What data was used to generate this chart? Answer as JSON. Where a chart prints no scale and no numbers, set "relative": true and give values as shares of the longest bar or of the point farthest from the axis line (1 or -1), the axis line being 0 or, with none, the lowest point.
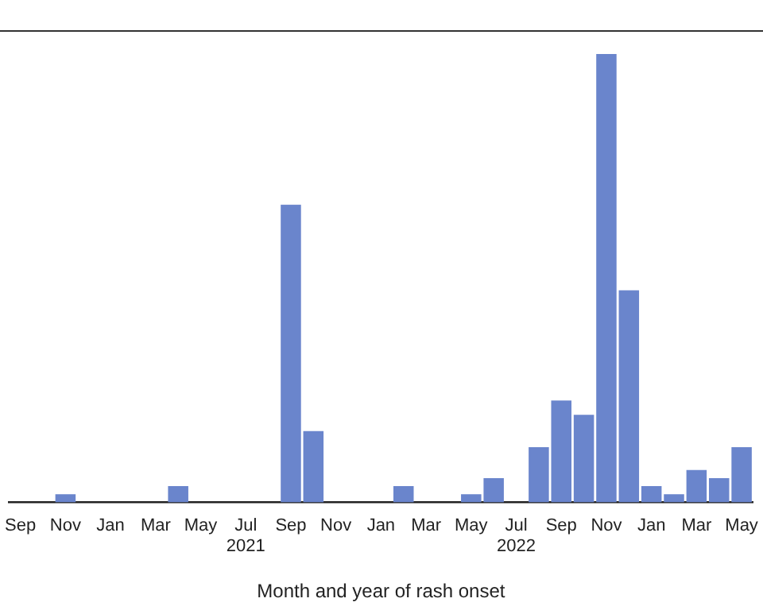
{
  "chart_data": {
    "type": "bar",
    "relative": true,
    "xlabel": "Month and year of rash onset",
    "categories": [
      "Sep",
      null,
      "Nov",
      null,
      "Jan",
      null,
      "Mar",
      null,
      "May",
      null,
      "Jul\n2021",
      null,
      "Sep",
      null,
      "Nov",
      null,
      "Jan",
      null,
      "Mar",
      null,
      "May",
      null,
      "Jul\n2022",
      null,
      "Sep",
      null,
      "Nov",
      null,
      "Jan",
      null,
      "Mar",
      null,
      "May"
    ],
    "values": [
      0,
      0,
      0.018,
      0,
      0,
      0,
      0,
      0.036,
      0,
      0,
      0,
      0,
      0.664,
      0.159,
      0,
      0,
      0,
      0.036,
      0,
      0,
      0.018,
      0.054,
      0,
      0.123,
      0.227,
      0.195,
      1,
      0.473,
      0.036,
      0.018,
      0.072,
      0.054,
      0.123
    ],
    "color": "#6a85cc",
    "grid": false,
    "legend": false
  }
}
